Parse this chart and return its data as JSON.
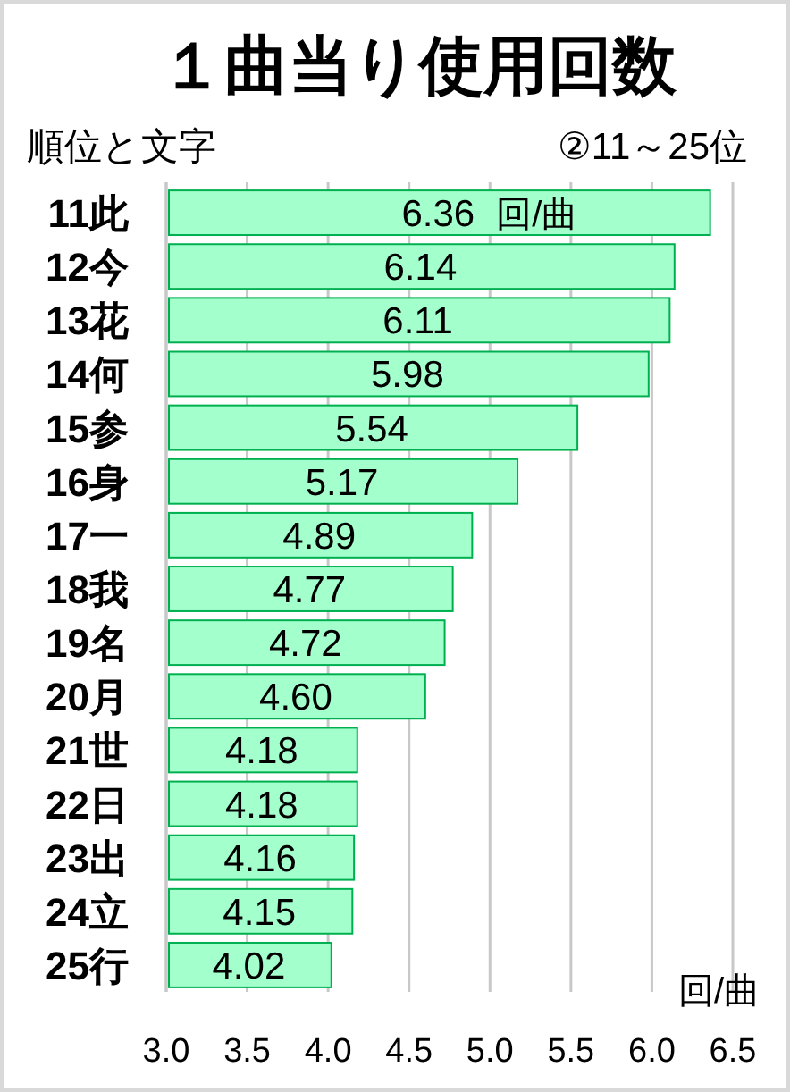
{
  "chart_data": {
    "type": "bar",
    "orientation": "horizontal",
    "title": "１曲当り使用回数",
    "subtitle": "②11～25位",
    "ylabel": "順位と文字",
    "xlabel": "回/曲",
    "categories": [
      "11此",
      "12今",
      "13花",
      "14何",
      "15参",
      "16身",
      "17一",
      "18我",
      "19名",
      "20月",
      "21世",
      "22日",
      "23出",
      "24立",
      "25行"
    ],
    "values": [
      6.36,
      6.14,
      6.11,
      5.98,
      5.54,
      5.17,
      4.89,
      4.77,
      4.72,
      4.6,
      4.18,
      4.18,
      4.16,
      4.15,
      4.02
    ],
    "value_labels": [
      "6.36",
      "6.14",
      "6.11",
      "5.98",
      "5.54",
      "5.17",
      "4.89",
      "4.77",
      "4.72",
      "4.60",
      "4.18",
      "4.18",
      "4.16",
      "4.15",
      "4.02"
    ],
    "color": "#a3ffcb",
    "annotations": [
      "回/曲"
    ],
    "xlim": [
      3.0,
      6.5
    ],
    "xticks": [
      {
        "value": 3.0,
        "label": "3.0"
      },
      {
        "value": 3.5,
        "label": "3.5"
      },
      {
        "value": 4.0,
        "label": "4.0"
      },
      {
        "value": 4.5,
        "label": "4.5"
      },
      {
        "value": 5.0,
        "label": "5.0"
      },
      {
        "value": 5.5,
        "label": "5.5"
      },
      {
        "value": 6.0,
        "label": "6.0"
      },
      {
        "value": 6.5,
        "label": "6.5"
      }
    ],
    "grid": "x"
  }
}
